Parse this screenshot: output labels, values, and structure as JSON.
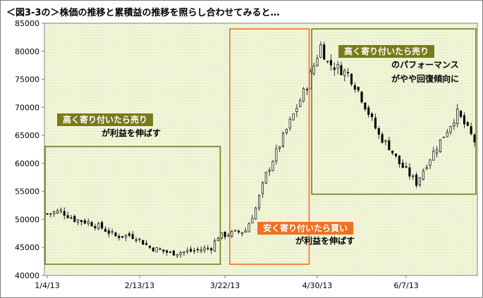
{
  "title": "＜図3-3の＞株価の推移と累積益の推移を照らし合わせてみると…",
  "annotations": [
    {
      "id": "a1",
      "label": "高く寄り付いたら売り",
      "caption": [
        "が利益を伸ばす"
      ],
      "color": "#7a7a1a"
    },
    {
      "id": "a2",
      "label": "安く寄り付いたら買い",
      "caption": [
        "が利益を伸ばす"
      ],
      "color": "#f07020"
    },
    {
      "id": "a3",
      "label": "高く寄り付いたら売り",
      "caption": [
        "のパフォーマンス",
        "がやや回復傾向に"
      ],
      "color": "#7a7a1a"
    }
  ],
  "colors": {
    "bg": "#f0f5d8",
    "dot": "#cfd9a0",
    "olive": "#7a7a1a",
    "orange": "#f07020"
  },
  "chart_data": {
    "type": "candlestick",
    "title": "＜図3-3の＞株価の推移と累積益の推移を照らし合わせてみると…",
    "ylim": [
      40000,
      85000
    ],
    "yticks": [
      40000,
      45000,
      50000,
      55000,
      60000,
      65000,
      70000,
      75000,
      80000,
      85000
    ],
    "xticks": [
      "1/4/13",
      "2/13/13",
      "3/22/13",
      "4/30/13",
      "6/7/13"
    ],
    "xtick_index": [
      0,
      27,
      52,
      79,
      105
    ],
    "n_sessions": 126,
    "close_keypoints": [
      [
        0,
        51000
      ],
      [
        4,
        51500
      ],
      [
        8,
        50000
      ],
      [
        12,
        49500
      ],
      [
        16,
        48500
      ],
      [
        20,
        47000
      ],
      [
        24,
        47200
      ],
      [
        26,
        46800
      ],
      [
        30,
        45000
      ],
      [
        33,
        44500
      ],
      [
        36,
        44000
      ],
      [
        40,
        44200
      ],
      [
        44,
        44500
      ],
      [
        48,
        45000
      ],
      [
        50,
        47000
      ],
      [
        54,
        47500
      ],
      [
        58,
        48000
      ],
      [
        61,
        52000
      ],
      [
        64,
        58000
      ],
      [
        67,
        62000
      ],
      [
        70,
        66000
      ],
      [
        73,
        70000
      ],
      [
        76,
        74000
      ],
      [
        80,
        81000
      ],
      [
        82,
        78000
      ],
      [
        85,
        77000
      ],
      [
        88,
        76000
      ],
      [
        91,
        73000
      ],
      [
        94,
        69000
      ],
      [
        97,
        65000
      ],
      [
        100,
        63000
      ],
      [
        103,
        60000
      ],
      [
        106,
        58000
      ],
      [
        108,
        56500
      ],
      [
        111,
        60000
      ],
      [
        114,
        63000
      ],
      [
        117,
        66000
      ],
      [
        120,
        69000
      ],
      [
        122,
        67000
      ],
      [
        124,
        65000
      ],
      [
        125,
        64000
      ]
    ],
    "annotation_regions": [
      {
        "id": "a1",
        "from": "1/4/13",
        "to": "3/19/13",
        "low": 42000,
        "high": 63000
      },
      {
        "id": "a2",
        "from": "3/25/13",
        "to": "4/25/13",
        "low": 42000,
        "high": 84000
      },
      {
        "id": "a3",
        "from": "4/29/13",
        "to": "7/5/13",
        "low": 54500,
        "high": 84000
      }
    ]
  }
}
